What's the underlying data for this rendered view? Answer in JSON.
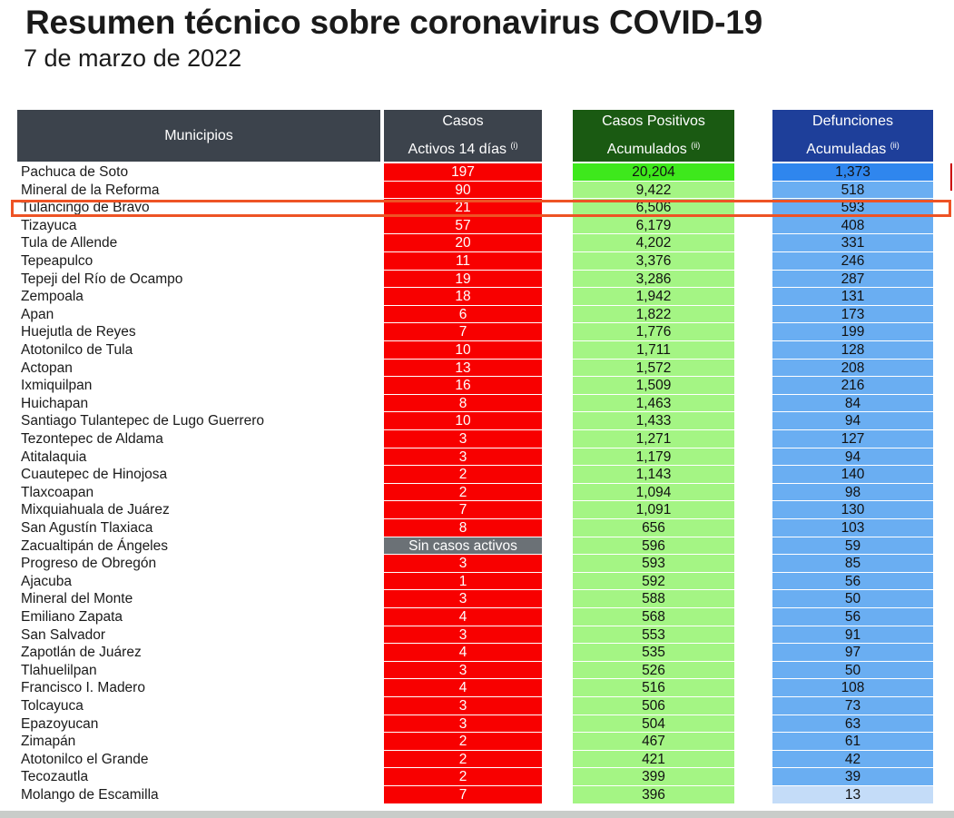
{
  "title": "Resumen técnico sobre coronavirus COVID-19",
  "subtitle": "7 de marzo de 2022",
  "colors": {
    "header_gray": "#3c434c",
    "header_green": "#1a5a12",
    "header_blue": "#1e3f9a",
    "active_red": "#f80000",
    "positive_green": "#a4f584",
    "deaths_blue": "#6aaef2",
    "highlight_orange": "#ee5325"
  },
  "headers": {
    "municipios": "Municipios",
    "activos_line1": "Casos",
    "activos_line2": "Activos 14 días",
    "activos_note": "(i)",
    "positivos_line1": "Casos Positivos",
    "positivos_line2": "Acumulados",
    "positivos_note": "(ii)",
    "defunciones_line1": "Defunciones",
    "defunciones_line2": "Acumuladas",
    "defunciones_note": "(ii)"
  },
  "rows": [
    {
      "municipio": "Pachuca de Soto",
      "activos": "197",
      "positivos": "20,204",
      "defunciones": "1,373"
    },
    {
      "municipio": "Mineral de la Reforma",
      "activos": "90",
      "positivos": "9,422",
      "defunciones": "518"
    },
    {
      "municipio": "Tulancingo de Bravo",
      "activos": "21",
      "positivos": "6,506",
      "defunciones": "593"
    },
    {
      "municipio": "Tizayuca",
      "activos": "57",
      "positivos": "6,179",
      "defunciones": "408"
    },
    {
      "municipio": "Tula de Allende",
      "activos": "20",
      "positivos": "4,202",
      "defunciones": "331"
    },
    {
      "municipio": "Tepeapulco",
      "activos": "11",
      "positivos": "3,376",
      "defunciones": "246"
    },
    {
      "municipio": "Tepeji del Río de Ocampo",
      "activos": "19",
      "positivos": "3,286",
      "defunciones": "287"
    },
    {
      "municipio": "Zempoala",
      "activos": "18",
      "positivos": "1,942",
      "defunciones": "131"
    },
    {
      "municipio": "Apan",
      "activos": "6",
      "positivos": "1,822",
      "defunciones": "173"
    },
    {
      "municipio": "Huejutla de Reyes",
      "activos": "7",
      "positivos": "1,776",
      "defunciones": "199"
    },
    {
      "municipio": "Atotonilco de Tula",
      "activos": "10",
      "positivos": "1,711",
      "defunciones": "128"
    },
    {
      "municipio": "Actopan",
      "activos": "13",
      "positivos": "1,572",
      "defunciones": "208"
    },
    {
      "municipio": "Ixmiquilpan",
      "activos": "16",
      "positivos": "1,509",
      "defunciones": "216"
    },
    {
      "municipio": "Huichapan",
      "activos": "8",
      "positivos": "1,463",
      "defunciones": "84"
    },
    {
      "municipio": "Santiago Tulantepec de Lugo Guerrero",
      "activos": "10",
      "positivos": "1,433",
      "defunciones": "94"
    },
    {
      "municipio": "Tezontepec de Aldama",
      "activos": "3",
      "positivos": "1,271",
      "defunciones": "127"
    },
    {
      "municipio": "Atitalaquia",
      "activos": "3",
      "positivos": "1,179",
      "defunciones": "94"
    },
    {
      "municipio": "Cuautepec de Hinojosa",
      "activos": "2",
      "positivos": "1,143",
      "defunciones": "140"
    },
    {
      "municipio": "Tlaxcoapan",
      "activos": "2",
      "positivos": "1,094",
      "defunciones": "98"
    },
    {
      "municipio": "Mixquiahuala de Juárez",
      "activos": "7",
      "positivos": "1,091",
      "defunciones": "130"
    },
    {
      "municipio": "San Agustín Tlaxiaca",
      "activos": "8",
      "positivos": "656",
      "defunciones": "103"
    },
    {
      "municipio": "Zacualtipán de Ángeles",
      "activos": "Sin casos activos",
      "positivos": "596",
      "defunciones": "59"
    },
    {
      "municipio": "Progreso de Obregón",
      "activos": "3",
      "positivos": "593",
      "defunciones": "85"
    },
    {
      "municipio": "Ajacuba",
      "activos": "1",
      "positivos": "592",
      "defunciones": "56"
    },
    {
      "municipio": "Mineral del Monte",
      "activos": "3",
      "positivos": "588",
      "defunciones": "50"
    },
    {
      "municipio": "Emiliano Zapata",
      "activos": "4",
      "positivos": "568",
      "defunciones": "56"
    },
    {
      "municipio": "San Salvador",
      "activos": "3",
      "positivos": "553",
      "defunciones": "91"
    },
    {
      "municipio": "Zapotlán de Juárez",
      "activos": "4",
      "positivos": "535",
      "defunciones": "97"
    },
    {
      "municipio": "Tlahuelilpan",
      "activos": "3",
      "positivos": "526",
      "defunciones": "50"
    },
    {
      "municipio": "Francisco I. Madero",
      "activos": "4",
      "positivos": "516",
      "defunciones": "108"
    },
    {
      "municipio": "Tolcayuca",
      "activos": "3",
      "positivos": "506",
      "defunciones": "73"
    },
    {
      "municipio": "Epazoyucan",
      "activos": "3",
      "positivos": "504",
      "defunciones": "63"
    },
    {
      "municipio": "Zimapán",
      "activos": "2",
      "positivos": "467",
      "defunciones": "61"
    },
    {
      "municipio": "Atotonilco el Grande",
      "activos": "2",
      "positivos": "421",
      "defunciones": "42"
    },
    {
      "municipio": "Tecozautla",
      "activos": "2",
      "positivos": "399",
      "defunciones": "39"
    },
    {
      "municipio": "Molango de Escamilla",
      "activos": "7",
      "positivos": "396",
      "defunciones": "13"
    }
  ]
}
